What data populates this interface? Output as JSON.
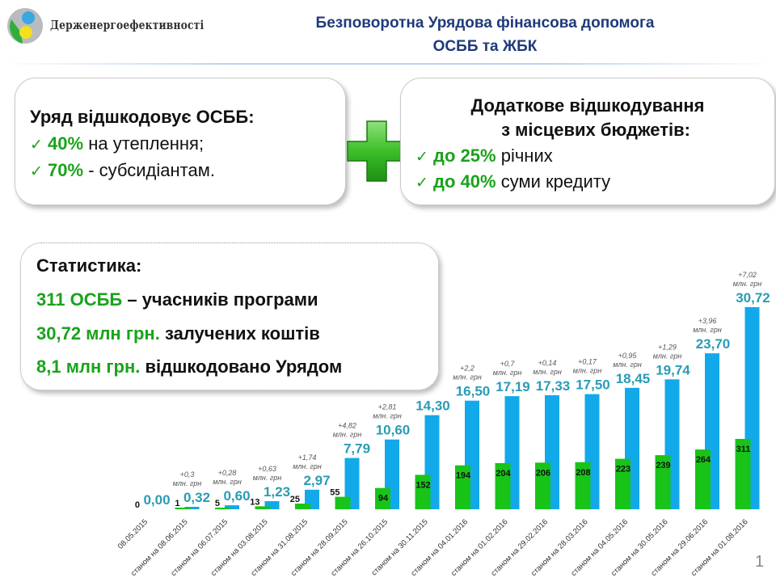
{
  "header": {
    "logo_text": "Держенергоефективності",
    "title_line1": "Безповоротна Урядова фінансова допомога",
    "title_line2": "ОСББ та ЖБК"
  },
  "box_government": {
    "heading": "Уряд відшкодовує ОСББ:",
    "items": [
      {
        "check": "✓",
        "value": "40%",
        "text": " на утеплення;"
      },
      {
        "check": "✓",
        "value": "70%",
        "text": " - субсидіантам."
      }
    ]
  },
  "plus_icon": "plus-icon",
  "box_local": {
    "heading_line1": "Додаткове відшкодування",
    "heading_line2": "з місцевих бюджетів:",
    "items": [
      {
        "check": "✓",
        "value": "до 25%",
        "text": " річних"
      },
      {
        "check": "✓",
        "value": "до 40%",
        "text": " суми кредиту"
      }
    ]
  },
  "stats": {
    "heading": "Статистика:",
    "lines": [
      {
        "value": "311 ОСББ",
        "text": " – учасників програми"
      },
      {
        "value": "30,72 млн грн.",
        "text": " залучених коштів"
      },
      {
        "value": "8,1 млн грн.",
        "text": " відшкодовано Урядом"
      }
    ]
  },
  "colors": {
    "green": "#1aa31a",
    "bar_green": "#17c417",
    "bar_blue": "#12a9ea",
    "value_label": "#2a9cb5",
    "title": "#1f3a7a"
  },
  "chart_data": {
    "type": "bar",
    "categories": [
      "08.05.2015",
      "станом на 08.06.2015",
      "станом на 06.07.2015",
      "станом на 03.08.2015",
      "станом на 31.08.2015",
      "станом на 28.09.2015",
      "станом на 26.10.2015",
      "станом на 30.11.2015",
      "станом на 04.01.2016",
      "станом на 01.02.2016",
      "станом на 29.02.2016",
      "станом на 28.03.2016",
      "станом на 04.05.2016",
      "станом на 30.05.2016",
      "станом на 29.06.2016",
      "станом на 01.08.2016"
    ],
    "series": [
      {
        "values": [
          0,
          1,
          5,
          13,
          25,
          55,
          94,
          152,
          194,
          204,
          206,
          208,
          223,
          239,
          264,
          311
        ],
        "labels": [
          "0",
          "1",
          "5",
          "13",
          "25",
          "55",
          "94",
          "152",
          "194",
          "204",
          "206",
          "208",
          "223",
          "239",
          "264",
          "311"
        ]
      },
      {
        "values": [
          0.0,
          0.32,
          0.6,
          1.23,
          2.97,
          7.79,
          10.6,
          14.3,
          16.5,
          17.19,
          17.33,
          17.5,
          18.45,
          19.74,
          23.7,
          30.72
        ],
        "labels": [
          "0,00",
          "0,32",
          "0,60",
          "1,23",
          "2,97",
          "7,79",
          "10,60",
          "14,30",
          "16,50",
          "17,19",
          "17,33",
          "17,50",
          "18,45",
          "19,74",
          "23,70",
          "30,72"
        ],
        "increments": [
          "",
          "+0,3",
          "+0,28",
          "+0,63",
          "+1,74",
          "+4,82",
          "+2,81",
          "",
          "+2,2",
          "+0,7",
          "+0,14",
          "+0,17",
          "+0,95",
          "+1,29",
          "+3,96",
          "+7,02"
        ],
        "increment_unit": "млн. грн"
      }
    ],
    "grid": false,
    "legend": "none"
  },
  "page_number": "1"
}
